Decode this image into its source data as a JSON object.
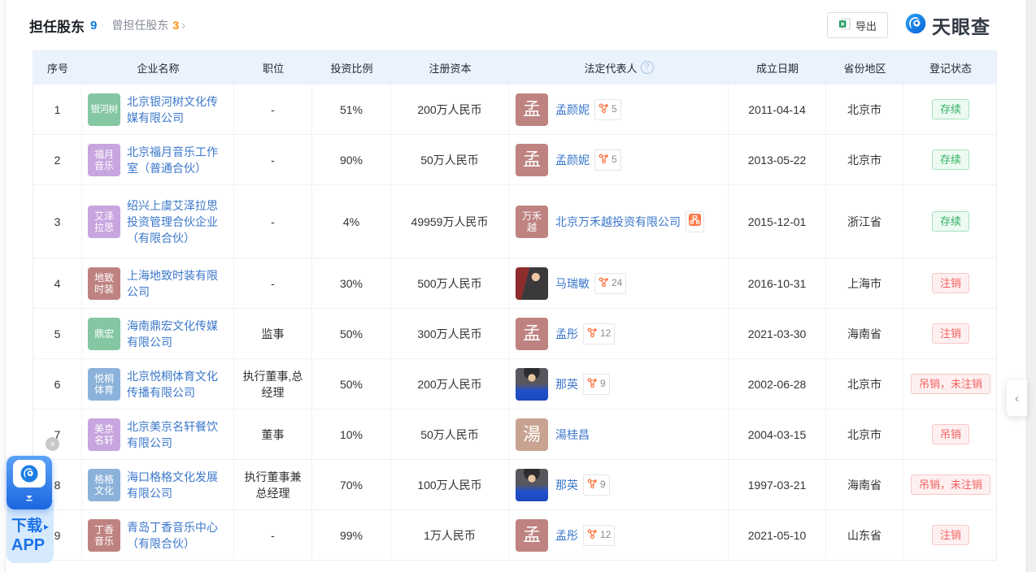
{
  "page": {
    "title": "担任股东",
    "title_count": "9",
    "former_tab": "曾担任股东",
    "former_count": "3",
    "former_chevron": "›",
    "export_label": "导出",
    "brand": "天眼查",
    "app_download": {
      "line1": "下载",
      "line2": "APP",
      "arrow": "▸"
    },
    "close_symbol": "×",
    "collapse_chevron": "‹"
  },
  "colors": {
    "link_blue": "#3B77CB",
    "count_blue": "#0B7BDB",
    "count_orange": "#FF8A00",
    "badge_icon_orange": "#FF7845",
    "status_green": "#2FB35F",
    "status_red": "#F45F5F",
    "header_bg": "#EAF2FB"
  },
  "table": {
    "legal_rep_help": "?",
    "headers": [
      "序号",
      "企业名称",
      "职位",
      "投资比例",
      "注册资本",
      "法定代表人",
      "成立日期",
      "省份地区",
      "登记状态"
    ],
    "rows": [
      {
        "seq": "1",
        "company": {
          "name": "北京银河树文化传媒有限公司",
          "avatar": {
            "type": "text",
            "lines": [
              "银河树"
            ],
            "color": "green"
          }
        },
        "position": "-",
        "ratio": "51%",
        "capital": "200万人民币",
        "rep": {
          "name": "孟颜妮",
          "avatar": {
            "type": "text",
            "lines": [
              "孟"
            ],
            "color": "red"
          },
          "badge": {
            "type": "relation",
            "count": "5"
          }
        },
        "date": "2011-04-14",
        "region": "北京市",
        "status": {
          "label": "存续",
          "tone": "active"
        }
      },
      {
        "seq": "2",
        "company": {
          "name": "北京福月音乐工作室（普通合伙）",
          "avatar": {
            "type": "text",
            "lines": [
              "福月",
              "音乐"
            ],
            "color": "purple"
          }
        },
        "position": "-",
        "ratio": "90%",
        "capital": "50万人民币",
        "rep": {
          "name": "孟颜妮",
          "avatar": {
            "type": "text",
            "lines": [
              "孟"
            ],
            "color": "red"
          },
          "badge": {
            "type": "relation",
            "count": "5"
          }
        },
        "date": "2013-05-22",
        "region": "北京市",
        "status": {
          "label": "存续",
          "tone": "active"
        }
      },
      {
        "seq": "3",
        "company": {
          "name": "绍兴上虞艾泽拉思投资管理合伙企业（有限合伙）",
          "avatar": {
            "type": "text",
            "lines": [
              "艾泽",
              "拉思"
            ],
            "color": "purple"
          }
        },
        "position": "-",
        "ratio": "4%",
        "capital": "49959万人民币",
        "rep": {
          "name": "北京万禾越投资有限公司",
          "avatar": {
            "type": "text",
            "lines": [
              "万禾",
              "越"
            ],
            "color": "red"
          },
          "badge": {
            "type": "orgchart"
          }
        },
        "date": "2015-12-01",
        "region": "浙江省",
        "status": {
          "label": "存续",
          "tone": "active"
        }
      },
      {
        "seq": "4",
        "company": {
          "name": "上海地致时装有限公司",
          "avatar": {
            "type": "text",
            "lines": [
              "地致",
              "时装"
            ],
            "color": "red"
          }
        },
        "position": "-",
        "ratio": "30%",
        "capital": "500万人民币",
        "rep": {
          "name": "马瑞敏",
          "avatar": {
            "type": "photo",
            "photo": "studio-red"
          },
          "badge": {
            "type": "relation",
            "count": "24"
          }
        },
        "date": "2016-10-31",
        "region": "上海市",
        "status": {
          "label": "注销",
          "tone": "cancelled"
        }
      },
      {
        "seq": "5",
        "company": {
          "name": "海南鼎宏文化传媒有限公司",
          "avatar": {
            "type": "text",
            "lines": [
              "鼎宏"
            ],
            "color": "green"
          }
        },
        "position": "监事",
        "ratio": "50%",
        "capital": "300万人民币",
        "rep": {
          "name": "孟彤",
          "avatar": {
            "type": "text",
            "lines": [
              "孟"
            ],
            "color": "red"
          },
          "badge": {
            "type": "relation",
            "count": "12"
          }
        },
        "date": "2021-03-30",
        "region": "海南省",
        "status": {
          "label": "注销",
          "tone": "cancelled"
        }
      },
      {
        "seq": "6",
        "company": {
          "name": "北京悦桐体育文化传播有限公司",
          "avatar": {
            "type": "text",
            "lines": [
              "悦桐",
              "体育"
            ],
            "color": "blue"
          }
        },
        "position": "执行董事,总经理",
        "ratio": "50%",
        "capital": "200万人民币",
        "rep": {
          "name": "那英",
          "avatar": {
            "type": "photo",
            "photo": "portrait-blue"
          },
          "badge": {
            "type": "relation",
            "count": "9"
          }
        },
        "date": "2002-06-28",
        "region": "北京市",
        "status": {
          "label": "吊销，未注销",
          "tone": "cancelled"
        }
      },
      {
        "seq": "7",
        "company": {
          "name": "北京美京名轩餐饮有限公司",
          "avatar": {
            "type": "text",
            "lines": [
              "美京",
              "名轩"
            ],
            "color": "purple"
          }
        },
        "position": "董事",
        "ratio": "10%",
        "capital": "50万人民币",
        "rep": {
          "name": "湯桂昌",
          "avatar": {
            "type": "text",
            "lines": [
              "湯"
            ],
            "color": "tan"
          },
          "badge": null
        },
        "date": "2004-03-15",
        "region": "北京市",
        "status": {
          "label": "吊销",
          "tone": "cancelled"
        }
      },
      {
        "seq": "8",
        "company": {
          "name": "海口格格文化发展有限公司",
          "avatar": {
            "type": "text",
            "lines": [
              "格格",
              "文化"
            ],
            "color": "blue"
          }
        },
        "position": "执行董事兼总经理",
        "ratio": "70%",
        "capital": "100万人民币",
        "rep": {
          "name": "那英",
          "avatar": {
            "type": "photo",
            "photo": "portrait-blue"
          },
          "badge": {
            "type": "relation",
            "count": "9"
          }
        },
        "date": "1997-03-21",
        "region": "海南省",
        "status": {
          "label": "吊销，未注销",
          "tone": "cancelled"
        }
      },
      {
        "seq": "9",
        "company": {
          "name": "青岛丁香音乐中心（有限合伙）",
          "avatar": {
            "type": "text",
            "lines": [
              "丁香",
              "音乐"
            ],
            "color": "red"
          }
        },
        "position": "-",
        "ratio": "99%",
        "capital": "1万人民币",
        "rep": {
          "name": "孟彤",
          "avatar": {
            "type": "text",
            "lines": [
              "孟"
            ],
            "color": "red"
          },
          "badge": {
            "type": "relation",
            "count": "12"
          }
        },
        "date": "2021-05-10",
        "region": "山东省",
        "status": {
          "label": "注销",
          "tone": "cancelled"
        }
      }
    ]
  }
}
